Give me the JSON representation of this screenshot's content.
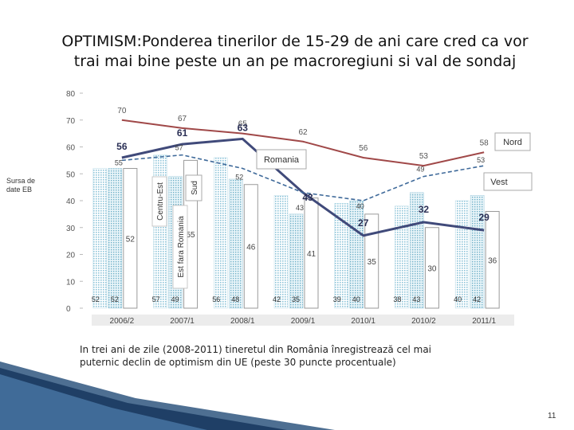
{
  "title_line1": "OPTIMISM:Ponderea tinerilor de 15-29 de ani care cred ca vor",
  "title_line2": "trai mai bine peste un an pe macroregiuni si val de sondaj",
  "source_line1": "Sursa de",
  "source_line2": "date EB",
  "note_line1": "In trei ani de zile (2008-2011) tineretul din România  înregistrează cel mai",
  "note_line2": "puternic declin de optimism din UE  (peste 30 puncte procentuale)",
  "page_number": "11",
  "chart_data": {
    "type": "bar",
    "categories": [
      "2006/2",
      "2007/1",
      "2008/1",
      "2009/1",
      "2010/1",
      "2010/2",
      "2011/1"
    ],
    "ylim": [
      0,
      80
    ],
    "yticks": [
      0,
      10,
      20,
      30,
      40,
      50,
      60,
      70,
      80
    ],
    "bar_series": [
      {
        "name": "Centru-Est",
        "values": [
          52,
          57,
          56,
          42,
          39,
          38,
          40
        ]
      },
      {
        "name": "Est fara Romania",
        "values": [
          52,
          49,
          48,
          35,
          40,
          43,
          42
        ]
      }
    ],
    "bar_value_labels": [
      [
        "52",
        "52"
      ],
      [
        "57",
        "49"
      ],
      [
        "56",
        "48"
      ],
      [
        "42",
        "35"
      ],
      [
        "39",
        "40"
      ],
      [
        "38",
        "43"
      ],
      [
        "40",
        "42"
      ]
    ],
    "white_bar_values": [
      52,
      55,
      46,
      41,
      35,
      30,
      36
    ],
    "line_series": [
      {
        "name": "Nord",
        "values": [
          70,
          67,
          65,
          62,
          56,
          53,
          58
        ],
        "color": "#a04848"
      },
      {
        "name": "Romania",
        "values": [
          56,
          61,
          63,
          43,
          27,
          32,
          29
        ],
        "color": "#404a7a"
      },
      {
        "name": "Vest",
        "values": [
          55,
          57,
          52,
          43,
          40,
          49,
          53
        ],
        "color": "#3f6a9a"
      }
    ],
    "line_value_labels": {
      "Nord": [
        "70",
        "67",
        "65",
        "62",
        "56",
        "53",
        "58"
      ],
      "Romania": [
        "56",
        "61",
        "63",
        "43",
        "27",
        "32",
        "29"
      ],
      "Vest": [
        "55",
        "57",
        "52",
        "43",
        "40",
        "49",
        "53"
      ]
    },
    "inline_labels": {
      "nord": "Nord",
      "romania": "Romania",
      "vest": "Vest",
      "sud": "Sud",
      "centru_est": "Centru-Est",
      "est_fara_romania": "Est fara Romania"
    },
    "grid": false,
    "colors": {
      "dotted_bar": "#a8d3e2",
      "dotted_bar_dark": "#6fb0c8",
      "nord_line": "#a04848",
      "romania_line": "#404a7a",
      "vest_line": "#3f6a9a",
      "axis": "#bbbbbb",
      "category_band": "#ececec"
    }
  }
}
